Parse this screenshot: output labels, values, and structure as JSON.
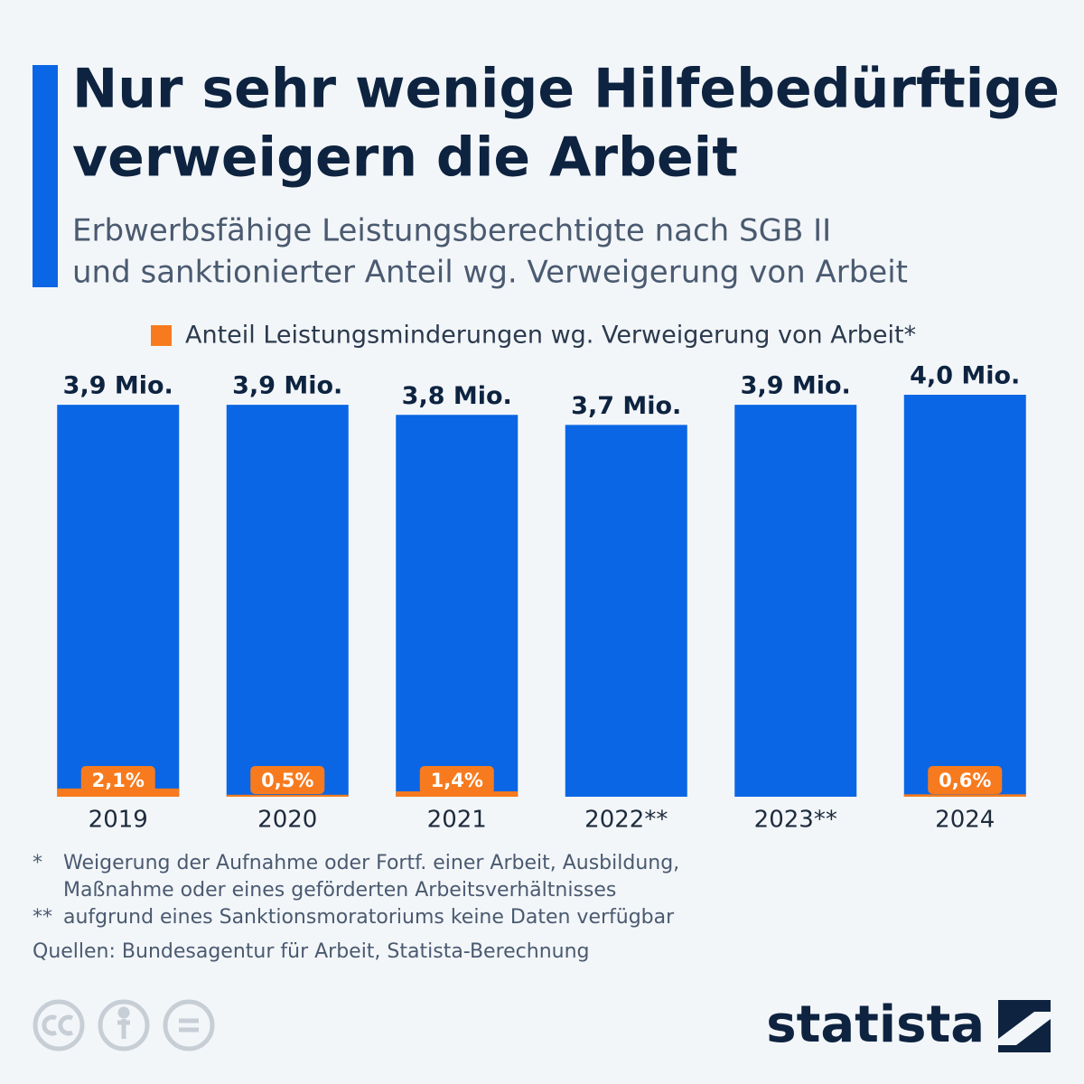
{
  "chart_data": {
    "type": "bar",
    "title": [
      "Nur sehr wenige Hilfebedürftige",
      "verweigern die Arbeit"
    ],
    "subtitle": [
      "Erbwerbsfähige Leistungsberechtigte nach SGB II",
      "und sanktionierter Anteil wg. Verweigerung von Arbeit"
    ],
    "categories": [
      "2019",
      "2020",
      "2021",
      "2022**",
      "2023**",
      "2024"
    ],
    "series": [
      {
        "color": "#0a66e4",
        "values": [
          3.9,
          3.9,
          3.8,
          3.7,
          3.9,
          4.0
        ],
        "value_labels": [
          "3,9 Mio.",
          "3,9 Mio.",
          "3,8 Mio.",
          "3,7 Mio.",
          "3,9 Mio.",
          "4,0 Mio."
        ]
      },
      {
        "name": "Anteil Leistungsminderungen wg. Verweigerung von Arbeit*",
        "color": "#f77b1e",
        "values": [
          2.1,
          0.5,
          1.4,
          null,
          null,
          0.6
        ],
        "value_labels": [
          "2,1%",
          "0,5%",
          "1,4%",
          null,
          null,
          "0,6%"
        ]
      }
    ],
    "ylim": [
      0,
      4.0
    ],
    "footnotes": [
      [
        "*",
        "Weigerung der Aufnahme oder Fortf. einer Arbeit, Ausbildung,"
      ],
      [
        "",
        "Maßnahme oder eines geförderten Arbeitsverhältnisses"
      ],
      [
        "**",
        "aufgrund eines Sanktionsmoratoriums keine Daten verfügbar"
      ]
    ],
    "source": "Quellen: Bundesagentur für Arbeit, Statista-Berechnung",
    "brand": "statista"
  }
}
